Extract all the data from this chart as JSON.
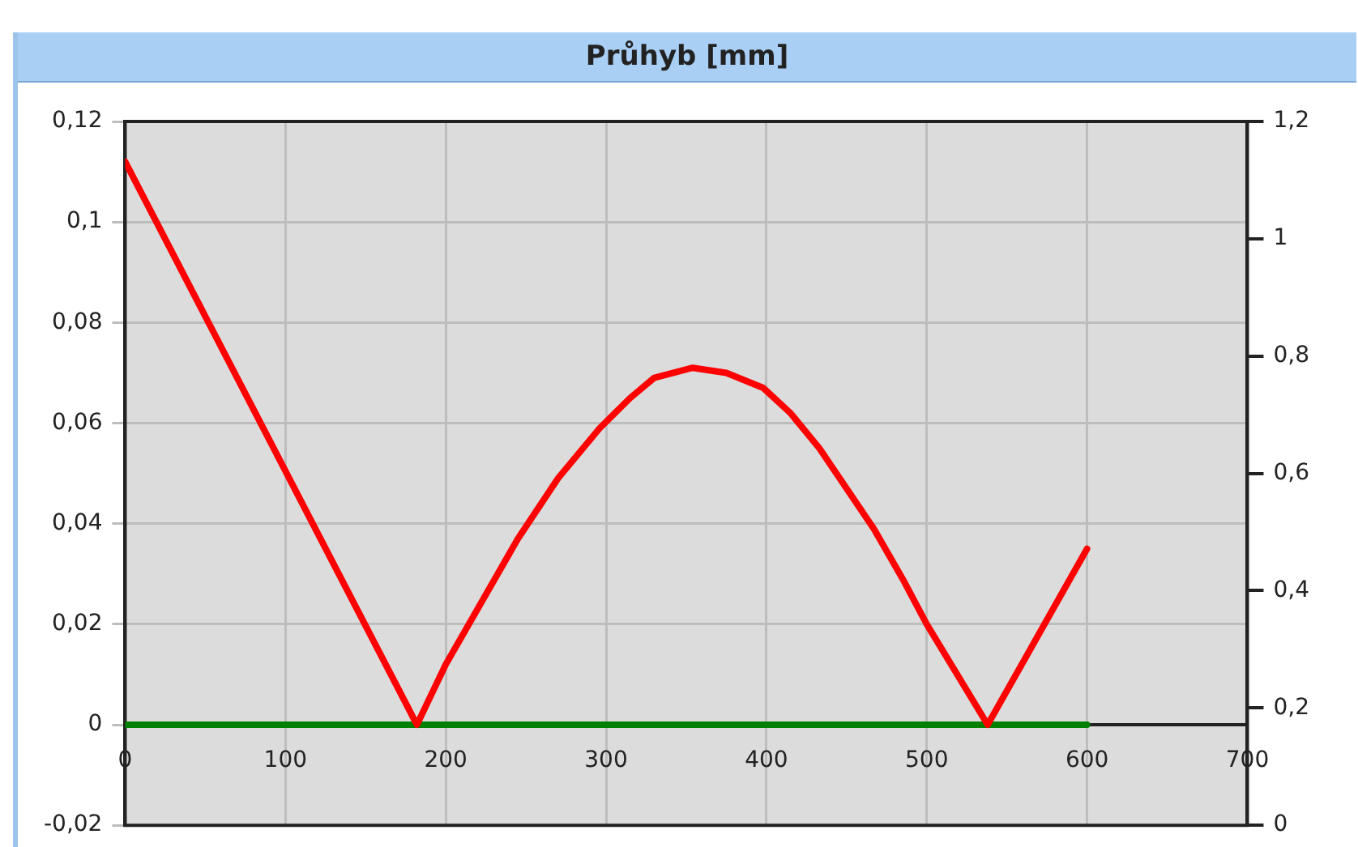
{
  "chart_data": {
    "type": "line",
    "title": "Průhyb [mm]",
    "x": [
      0,
      182,
      200,
      245,
      270,
      296,
      315,
      330,
      354,
      375,
      398,
      415,
      433,
      450,
      467,
      485,
      500,
      538,
      600
    ],
    "series": [
      {
        "color": "#ff0000",
        "values": [
          0.112,
          0,
          0.012,
          0.037,
          0.049,
          0.059,
          0.065,
          0.069,
          0.071,
          0.07,
          0.067,
          0.062,
          0.055,
          0.047,
          0.039,
          0.029,
          0.02,
          0,
          0.035
        ]
      },
      {
        "color": "#008000",
        "x": [
          0,
          600
        ],
        "values": [
          0,
          0
        ]
      }
    ],
    "xlim": [
      0,
      700
    ],
    "xticks": [
      0,
      100,
      200,
      300,
      400,
      500,
      600,
      700
    ],
    "ylim": [
      -0.02,
      0.12
    ],
    "yticks": [
      {
        "value": -0.02,
        "label": "-0,02"
      },
      0,
      {
        "value": 0.02,
        "label": "0,02"
      },
      {
        "value": 0.04,
        "label": "0,04"
      },
      {
        "value": 0.06,
        "label": "0,06"
      },
      {
        "value": 0.08,
        "label": "0,08"
      },
      {
        "value": 0.1,
        "label": "0,1"
      },
      {
        "value": 0.12,
        "label": "0,12"
      }
    ],
    "y2lim": [
      0,
      1.2
    ],
    "y2ticks": [
      0,
      {
        "value": 0.2,
        "label": "0,2"
      },
      {
        "value": 0.4,
        "label": "0,4"
      },
      {
        "value": 0.6,
        "label": "0,6"
      },
      {
        "value": 0.8,
        "label": "0,8"
      },
      1,
      {
        "value": 1.2,
        "label": "1,2"
      }
    ],
    "grid": true,
    "marker": "none",
    "line_style": "solid"
  }
}
